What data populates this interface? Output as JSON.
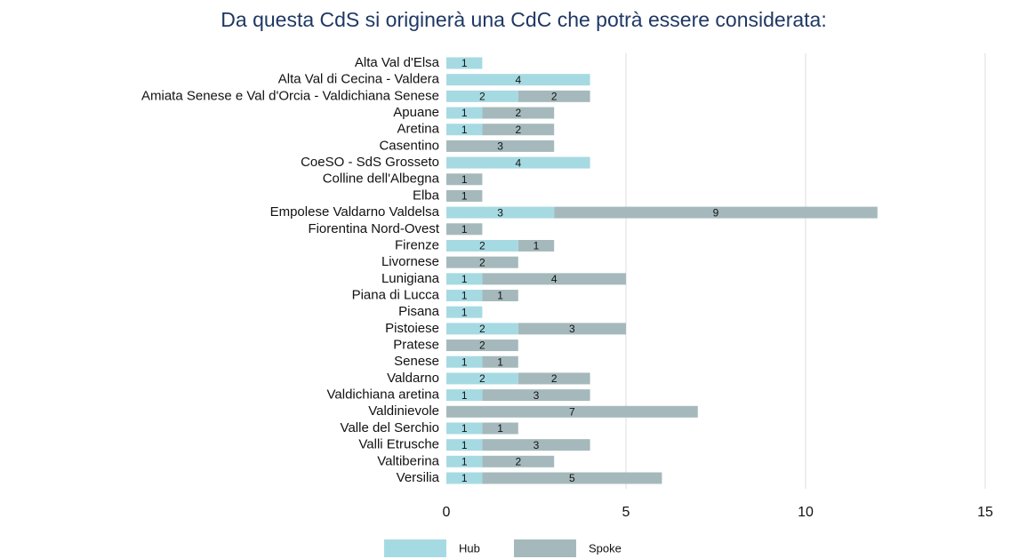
{
  "chart_data": {
    "type": "stacked-bar-horizontal",
    "title": "Da questa CdS si originerà una CdC che potrà essere considerata:",
    "categories": [
      "Alta Val d'Elsa",
      "Alta Val di Cecina - Valdera",
      "Amiata Senese e Val d'Orcia - Valdichiana Senese",
      "Apuane",
      "Aretina",
      "Casentino",
      "CoeSO - SdS Grosseto",
      "Colline dell'Albegna",
      "Elba",
      "Empolese Valdarno Valdelsa",
      "Fiorentina Nord-Ovest",
      "Firenze",
      "Livornese",
      "Lunigiana",
      "Piana di Lucca",
      "Pisana",
      "Pistoiese",
      "Pratese",
      "Senese",
      "Valdarno",
      "Valdichiana aretina",
      "Valdinievole",
      "Valle del Serchio",
      "Valli Etrusche",
      "Valtiberina",
      "Versilia"
    ],
    "series": [
      {
        "name": "Hub",
        "color": "#a6dae2",
        "values": [
          1,
          4,
          2,
          1,
          1,
          null,
          4,
          null,
          null,
          3,
          null,
          2,
          null,
          1,
          1,
          1,
          2,
          null,
          1,
          2,
          1,
          null,
          1,
          1,
          1,
          1
        ]
      },
      {
        "name": "Spoke",
        "color": "#a5b9bc",
        "values": [
          null,
          null,
          2,
          2,
          2,
          3,
          null,
          1,
          1,
          9,
          1,
          1,
          2,
          4,
          1,
          null,
          3,
          2,
          1,
          2,
          3,
          7,
          1,
          3,
          2,
          5
        ]
      }
    ],
    "xlim": [
      0,
      15
    ],
    "xticks": [
      0,
      5,
      10,
      15
    ],
    "grid": true,
    "legend": "bottom"
  }
}
